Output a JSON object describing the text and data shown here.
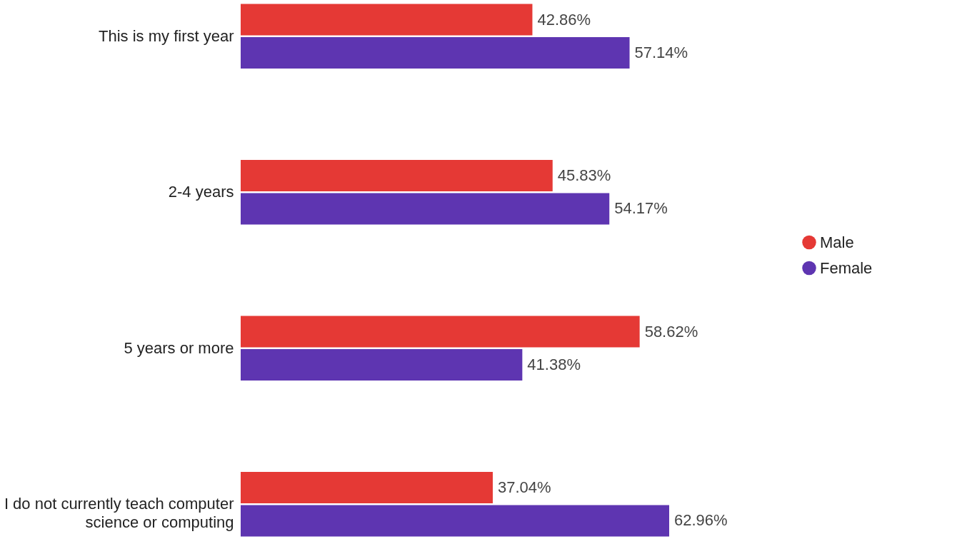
{
  "chart_data": {
    "type": "bar",
    "orientation": "horizontal",
    "categories": [
      "This is my first year",
      "2-4 years",
      "5 years or more",
      "I do not currently teach computer\nscience or computing"
    ],
    "series": [
      {
        "name": "Male",
        "color": "#e53935",
        "values": [
          42.86,
          45.83,
          58.62,
          37.04
        ],
        "value_labels": [
          "42.86%",
          "45.83%",
          "58.62%",
          "37.04%"
        ]
      },
      {
        "name": "Female",
        "color": "#5e35b1",
        "values": [
          57.14,
          54.17,
          41.38,
          62.96
        ],
        "value_labels": [
          "57.14%",
          "54.17%",
          "41.38%",
          "62.96%"
        ]
      }
    ],
    "legend": "right",
    "grid": false
  }
}
